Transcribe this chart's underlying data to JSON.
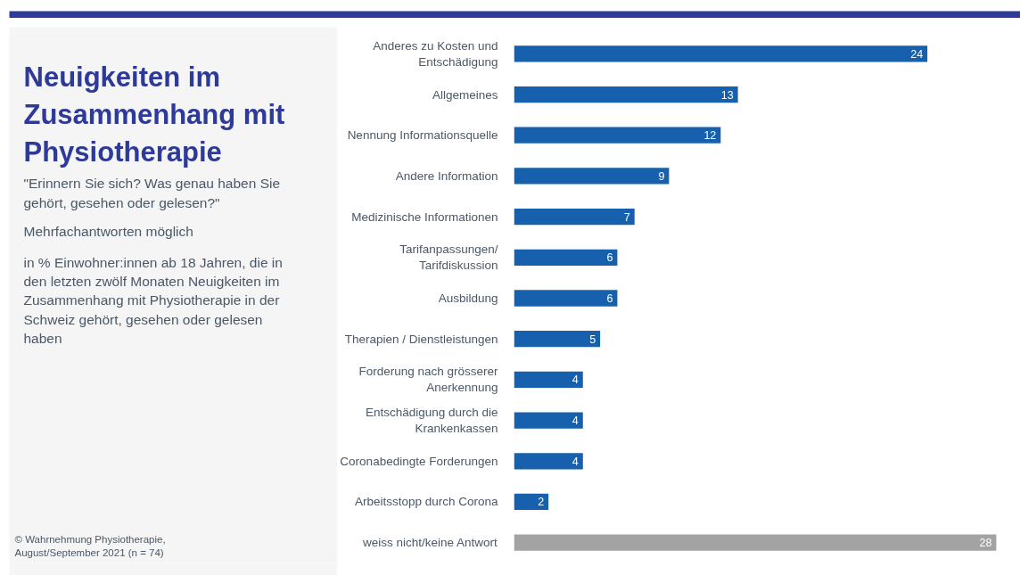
{
  "chart_data": {
    "type": "bar",
    "orientation": "horizontal",
    "title": "Neuigkeiten im Zusammenhang mit Physiotherapie",
    "subtitle": "\"Erinnern Sie sich? Was genau haben Sie gehört, gesehen oder gelesen?\"",
    "annotations": [
      "Mehrfachantworten möglich",
      "in % Einwohner:innen ab 18 Jahren, die in den letzten zwölf Monaten Neuigkeiten im Zusammenhang mit Physiotherapie in der Schweiz gehört, gesehen oder gelesen haben",
      "© Wahrnehmung Physiotherapie, August/September 2021 (n = 74)"
    ],
    "categories": [
      "Anderes zu Kosten und Entschädigung",
      "Allgemeines",
      "Nennung Informationsquelle",
      "Andere Information",
      "Medizinische Informationen",
      "Tarifanpassungen/ Tarifdiskussion",
      "Ausbildung",
      "Therapien / Dienstleistungen",
      "Forderung nach grösserer Anerkennung",
      "Entschädigung durch die Krankenkassen",
      "Coronabedingte Forderungen",
      "Arbeitsstopp durch Corona",
      "weiss nicht/keine Antwort"
    ],
    "values": [
      24,
      13,
      12,
      9,
      7,
      6,
      6,
      5,
      4,
      4,
      4,
      2,
      28
    ],
    "colors": [
      "#1660ad",
      "#1660ad",
      "#1660ad",
      "#1660ad",
      "#1660ad",
      "#1660ad",
      "#1660ad",
      "#1660ad",
      "#1660ad",
      "#1660ad",
      "#1660ad",
      "#1660ad",
      "#a3a3a3"
    ],
    "data_labels": true,
    "grid": false,
    "tick_labels": "y"
  }
}
